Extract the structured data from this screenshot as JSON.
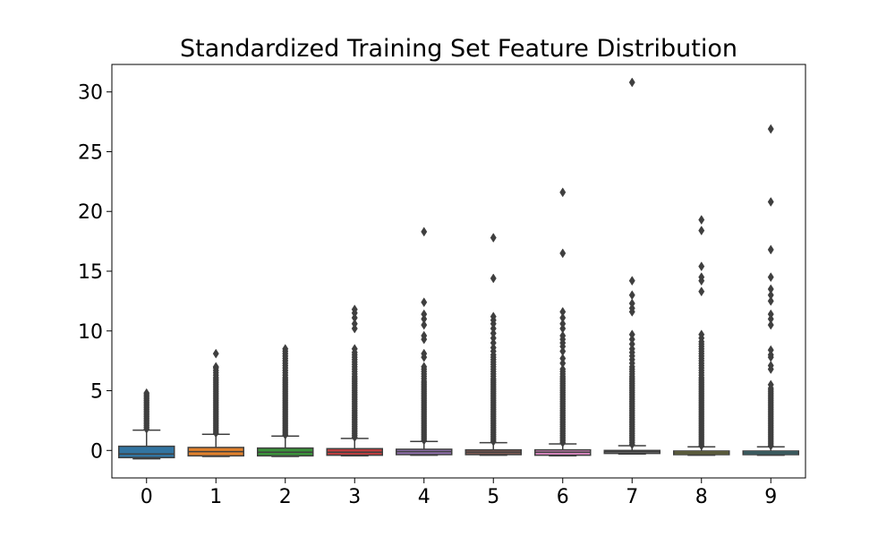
{
  "chart_data": {
    "type": "box",
    "title": "Standardized Training Set Feature Distribution",
    "xlabel": "",
    "ylabel": "",
    "ylim": [
      -2.3,
      32.3
    ],
    "yticks": [
      0,
      5,
      10,
      15,
      20,
      25,
      30
    ],
    "categories": [
      "0",
      "1",
      "2",
      "3",
      "4",
      "5",
      "6",
      "7",
      "8",
      "9"
    ],
    "grid": false,
    "colors": [
      "#3274a1",
      "#e1812c",
      "#3a923a",
      "#c03d3e",
      "#9372b2",
      "#845b53",
      "#d684bd",
      "#7f7f7f",
      "#a9aa35",
      "#2ea9b8"
    ],
    "series": [
      {
        "category": "0",
        "whislo": -0.7,
        "q1": -0.6,
        "median": -0.3,
        "q3": 0.35,
        "whishi": 1.7,
        "fliers": [
          1.8,
          1.95,
          2.1,
          2.25,
          2.4,
          2.55,
          2.7,
          2.85,
          3.0,
          3.15,
          3.3,
          3.45,
          3.6,
          3.75,
          3.9,
          4.05,
          4.2,
          4.35,
          4.5,
          4.65,
          4.8
        ]
      },
      {
        "category": "1",
        "whislo": -0.5,
        "q1": -0.45,
        "median": -0.1,
        "q3": 0.25,
        "whishi": 1.35,
        "fliers": [
          1.45,
          1.6,
          1.75,
          1.9,
          2.05,
          2.2,
          2.35,
          2.5,
          2.65,
          2.8,
          2.95,
          3.1,
          3.25,
          3.4,
          3.55,
          3.7,
          3.85,
          4.0,
          4.15,
          4.3,
          4.45,
          4.6,
          4.75,
          4.9,
          5.05,
          5.2,
          5.35,
          5.5,
          5.65,
          5.8,
          5.95,
          6.1,
          6.3,
          6.5,
          6.7,
          6.9,
          7.0,
          8.1
        ]
      },
      {
        "category": "2",
        "whislo": -0.5,
        "q1": -0.45,
        "median": -0.15,
        "q3": 0.2,
        "whishi": 1.2,
        "fliers": [
          1.3,
          1.45,
          1.6,
          1.75,
          1.9,
          2.05,
          2.2,
          2.35,
          2.5,
          2.65,
          2.8,
          2.95,
          3.1,
          3.25,
          3.4,
          3.55,
          3.7,
          3.85,
          4.0,
          4.15,
          4.3,
          4.45,
          4.6,
          4.75,
          4.9,
          5.05,
          5.2,
          5.35,
          5.5,
          5.65,
          5.8,
          5.95,
          6.1,
          6.3,
          6.5,
          6.7,
          6.9,
          7.1,
          7.3,
          7.5,
          7.7,
          7.9,
          8.1,
          8.3,
          8.5
        ]
      },
      {
        "category": "3",
        "whislo": -0.45,
        "q1": -0.4,
        "median": -0.15,
        "q3": 0.15,
        "whishi": 1.0,
        "fliers": [
          1.1,
          1.25,
          1.4,
          1.55,
          1.7,
          1.85,
          2.0,
          2.15,
          2.3,
          2.45,
          2.6,
          2.75,
          2.9,
          3.05,
          3.2,
          3.35,
          3.5,
          3.65,
          3.8,
          3.95,
          4.1,
          4.25,
          4.4,
          4.55,
          4.7,
          4.85,
          5.0,
          5.15,
          5.3,
          5.45,
          5.6,
          5.75,
          5.9,
          6.05,
          6.2,
          6.4,
          6.6,
          6.8,
          7.0,
          7.2,
          7.4,
          7.6,
          7.8,
          8.0,
          8.2,
          8.5,
          10.2,
          10.6,
          11.1,
          11.5,
          11.8
        ]
      },
      {
        "category": "4",
        "whislo": -0.4,
        "q1": -0.35,
        "median": -0.1,
        "q3": 0.1,
        "whishi": 0.75,
        "fliers": [
          0.85,
          1.0,
          1.15,
          1.3,
          1.45,
          1.6,
          1.75,
          1.9,
          2.05,
          2.2,
          2.35,
          2.5,
          2.65,
          2.8,
          2.95,
          3.1,
          3.25,
          3.4,
          3.55,
          3.7,
          3.85,
          4.0,
          4.15,
          4.3,
          4.45,
          4.6,
          4.75,
          4.9,
          5.05,
          5.2,
          5.35,
          5.5,
          5.65,
          5.8,
          6.0,
          6.2,
          6.4,
          6.6,
          6.8,
          7.0,
          7.8,
          8.1,
          9.3,
          9.6,
          10.5,
          11.0,
          11.4,
          12.4,
          18.3
        ]
      },
      {
        "category": "5",
        "whislo": -0.4,
        "q1": -0.35,
        "median": -0.15,
        "q3": 0.05,
        "whishi": 0.65,
        "fliers": [
          0.75,
          0.9,
          1.05,
          1.2,
          1.35,
          1.5,
          1.65,
          1.8,
          1.95,
          2.1,
          2.25,
          2.4,
          2.55,
          2.7,
          2.85,
          3.0,
          3.15,
          3.3,
          3.45,
          3.6,
          3.75,
          3.9,
          4.05,
          4.2,
          4.35,
          4.5,
          4.65,
          4.8,
          4.95,
          5.1,
          5.25,
          5.4,
          5.55,
          5.7,
          5.85,
          6.0,
          6.2,
          6.4,
          6.6,
          6.8,
          7.0,
          7.2,
          7.4,
          7.6,
          7.8,
          8.0,
          8.3,
          8.6,
          9.0,
          9.4,
          9.8,
          10.2,
          10.6,
          10.9,
          11.2,
          14.4,
          17.8
        ]
      },
      {
        "category": "6",
        "whislo": -0.45,
        "q1": -0.4,
        "median": -0.15,
        "q3": 0.05,
        "whishi": 0.55,
        "fliers": [
          0.65,
          0.8,
          0.95,
          1.1,
          1.25,
          1.4,
          1.55,
          1.7,
          1.85,
          2.0,
          2.15,
          2.3,
          2.45,
          2.6,
          2.75,
          2.9,
          3.05,
          3.2,
          3.35,
          3.5,
          3.65,
          3.8,
          3.95,
          4.1,
          4.25,
          4.4,
          4.55,
          4.7,
          4.85,
          5.0,
          5.15,
          5.3,
          5.45,
          5.6,
          5.75,
          5.9,
          6.05,
          6.2,
          6.4,
          6.6,
          6.8,
          7.3,
          7.7,
          8.3,
          8.7,
          9.0,
          9.3,
          9.6,
          10.2,
          10.6,
          11.1,
          11.6,
          16.5,
          21.6
        ]
      },
      {
        "category": "7",
        "whislo": -0.3,
        "q1": -0.25,
        "median": -0.1,
        "q3": 0.0,
        "whishi": 0.4,
        "fliers": [
          0.5,
          0.65,
          0.8,
          0.95,
          1.1,
          1.25,
          1.4,
          1.55,
          1.7,
          1.85,
          2.0,
          2.15,
          2.3,
          2.45,
          2.6,
          2.75,
          2.9,
          3.05,
          3.2,
          3.35,
          3.5,
          3.65,
          3.8,
          3.95,
          4.1,
          4.25,
          4.4,
          4.55,
          4.7,
          4.85,
          5.0,
          5.15,
          5.3,
          5.45,
          5.6,
          5.75,
          5.9,
          6.05,
          6.2,
          6.4,
          6.6,
          6.8,
          7.0,
          7.3,
          7.6,
          7.9,
          8.2,
          8.5,
          8.9,
          9.3,
          9.7,
          11.6,
          11.9,
          12.3,
          13.0,
          14.2,
          30.8
        ]
      },
      {
        "category": "8",
        "whislo": -0.4,
        "q1": -0.35,
        "median": -0.2,
        "q3": -0.05,
        "whishi": 0.3,
        "fliers": [
          0.4,
          0.55,
          0.7,
          0.85,
          1.0,
          1.15,
          1.3,
          1.45,
          1.6,
          1.75,
          1.9,
          2.05,
          2.2,
          2.35,
          2.5,
          2.65,
          2.8,
          2.95,
          3.1,
          3.25,
          3.4,
          3.55,
          3.7,
          3.85,
          4.0,
          4.15,
          4.3,
          4.45,
          4.6,
          4.75,
          4.9,
          5.05,
          5.2,
          5.35,
          5.5,
          5.65,
          5.8,
          5.95,
          6.1,
          6.3,
          6.5,
          6.7,
          6.9,
          7.1,
          7.3,
          7.5,
          7.7,
          7.9,
          8.1,
          8.3,
          8.5,
          8.7,
          8.9,
          9.1,
          9.4,
          9.7,
          13.3,
          14.2,
          14.5,
          15.4,
          18.4,
          19.3
        ]
      },
      {
        "category": "9",
        "whislo": -0.4,
        "q1": -0.35,
        "median": -0.2,
        "q3": -0.05,
        "whishi": 0.3,
        "fliers": [
          0.4,
          0.55,
          0.7,
          0.85,
          1.0,
          1.15,
          1.3,
          1.45,
          1.6,
          1.75,
          1.9,
          2.05,
          2.2,
          2.35,
          2.5,
          2.65,
          2.8,
          2.95,
          3.1,
          3.25,
          3.4,
          3.55,
          3.7,
          3.85,
          4.0,
          4.15,
          4.3,
          4.45,
          4.6,
          4.75,
          4.9,
          5.05,
          5.2,
          5.5,
          6.8,
          7.1,
          7.8,
          8.0,
          8.4,
          10.5,
          11.0,
          11.4,
          12.5,
          13.0,
          13.5,
          14.5,
          16.8,
          20.8,
          26.9
        ]
      }
    ]
  }
}
